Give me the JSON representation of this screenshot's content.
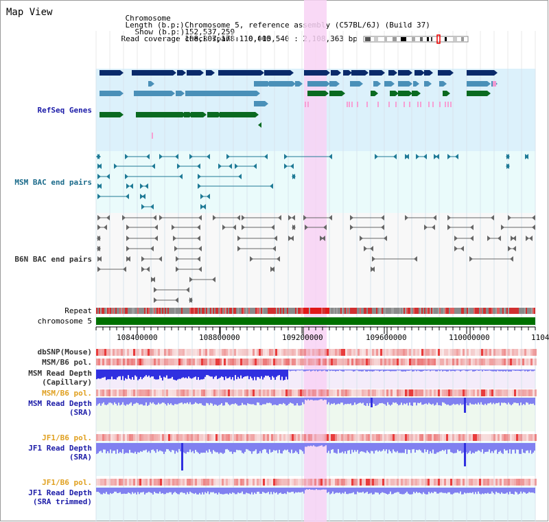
{
  "title": "Map View",
  "info": {
    "chromosome_label": "Chromosome",
    "chromosome_value": "Chromosome 5, reference assembly (C57BL/6J) (Build 37)",
    "length_label": "Length (b.p.)",
    "length_value": "152,537,259",
    "show_label": "Show (b.p.)",
    "show_value": "108,307,178-110,415,540 : 2,108,363 bp",
    "coverage_label": "Read coverage check span",
    "coverage_value": "10,000"
  },
  "tracks": {
    "refseq": "RefSeq Genes",
    "msm_bac": "MSM BAC end pairs",
    "b6n_bac": "B6N BAC end pairs",
    "repeat": "Repeat",
    "chromosome": "chromosome 5",
    "dbsnp": "dbSNP(Mouse)",
    "msm_b6_pol_1": "MSM/B6 pol.",
    "msm_read_depth_cap_1": "MSM Read Depth",
    "msm_read_depth_cap_2": "(Capillary)",
    "msm_b6_pol_2": "MSM/B6 pol.",
    "msm_read_depth_sra_1": "MSM Read Depth",
    "msm_read_depth_sra_2": "(SRA)",
    "jf1_b6_pol_1": "JF1/B6 pol.",
    "jf1_read_depth_sra_1": "JF1 Read Depth",
    "jf1_read_depth_sra_2": "(SRA)",
    "jf1_b6_pol_2": "JF1/B6 pol.",
    "jf1_read_depth_trim_1": "JF1 Read Depth",
    "jf1_read_depth_trim_2": "(SRA trimmed)"
  },
  "axis_ticks": [
    "108400000",
    "108800000",
    "109200000",
    "109600000",
    "110000000",
    "1104"
  ],
  "colors": {
    "refseq_bg": "#dcf1fb",
    "bac_bg": "#eafbfb",
    "highlight": "#f8d2f4",
    "chromosome_bar": "#007000",
    "gene_dark": "#0a2a6a",
    "gene_mid": "#4a90b8",
    "gene_green": "#0a6a20",
    "pink": "#f0a0d0",
    "depth_blue": "#3030e0",
    "depth_light": "#8080f0"
  }
}
